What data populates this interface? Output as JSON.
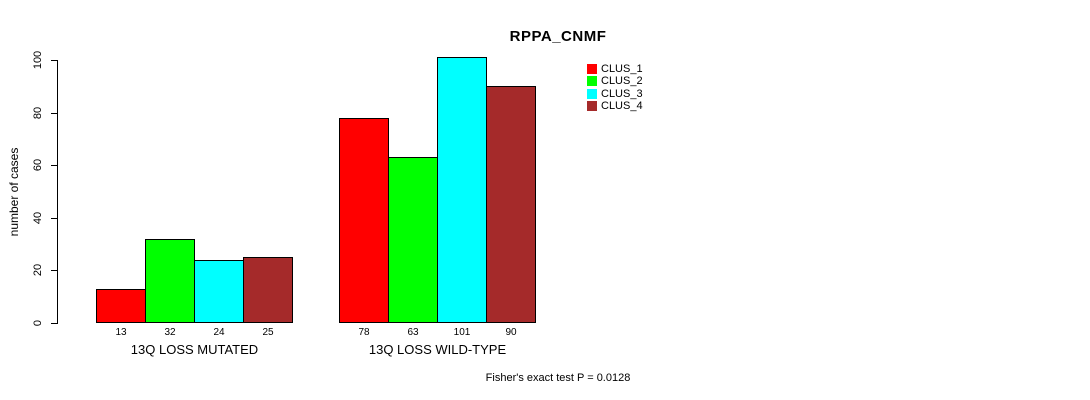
{
  "chart": {
    "title": "RPPA_CNMF",
    "ylabel": "number of cases",
    "footer": "Fisher's exact test P = 0.0128"
  },
  "chart_data": {
    "type": "bar",
    "title": "RPPA_CNMF",
    "xlabel": "",
    "ylabel": "number of cases",
    "categories": [
      "13Q LOSS MUTATED",
      "13Q LOSS WILD-TYPE"
    ],
    "series": [
      {
        "name": "CLUS_1",
        "color": "#FF0000",
        "values": [
          13,
          78
        ]
      },
      {
        "name": "CLUS_2",
        "color": "#00FF00",
        "values": [
          32,
          63
        ]
      },
      {
        "name": "CLUS_3",
        "color": "#00FFFF",
        "values": [
          24,
          101
        ]
      },
      {
        "name": "CLUS_4",
        "color": "#A52A2A",
        "values": [
          25,
          90
        ]
      }
    ],
    "yticks": [
      0,
      20,
      40,
      60,
      80,
      100
    ],
    "ylim": [
      0,
      105
    ],
    "grid": false,
    "bar_borders_color": "#000000",
    "value_labels_shown": true,
    "legend_position": "top-right",
    "legend_entries": [
      "CLUS_1",
      "CLUS_2",
      "CLUS_3",
      "CLUS_4"
    ],
    "annotation": "Fisher's exact test P = 0.0128"
  }
}
